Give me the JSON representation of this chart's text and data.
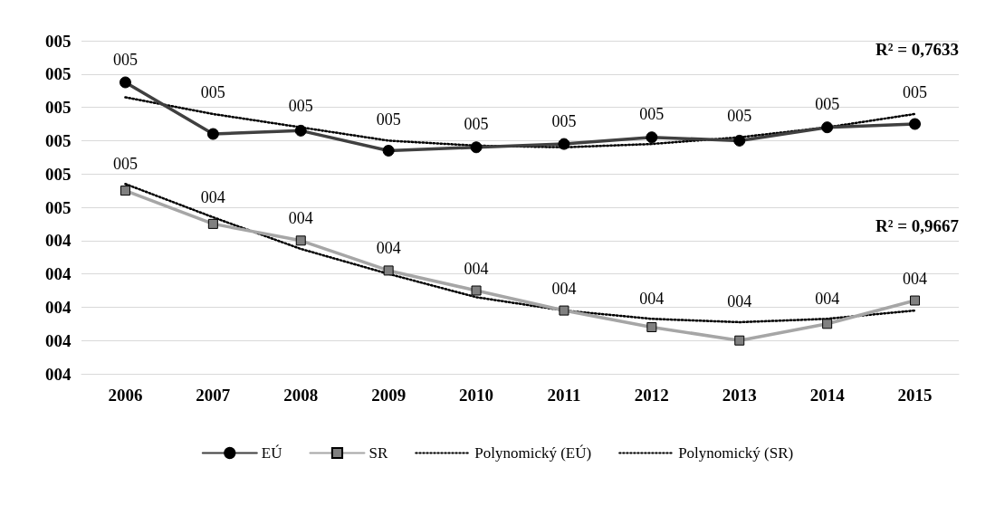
{
  "chart_data": {
    "type": "line",
    "categories": [
      "2006",
      "2007",
      "2008",
      "2009",
      "2010",
      "2011",
      "2012",
      "2013",
      "2014",
      "2015"
    ],
    "series": [
      {
        "name": "EÚ",
        "color": "#404040",
        "marker": "circle",
        "line_style": "solid",
        "values": [
          4.875,
          4.72,
          4.73,
          4.67,
          4.68,
          4.69,
          4.71,
          4.7,
          4.74,
          4.75
        ],
        "value_labels": [
          "005",
          "005",
          "005",
          "005",
          "005",
          "005",
          "005",
          "005",
          "005",
          "005"
        ]
      },
      {
        "name": "SR",
        "color": "#a6a6a6",
        "marker": "square",
        "line_style": "solid",
        "values": [
          4.55,
          4.45,
          4.4,
          4.31,
          4.25,
          4.19,
          4.14,
          4.1,
          4.15,
          4.22
        ],
        "value_labels": [
          "005",
          "004",
          "004",
          "004",
          "004",
          "004",
          "004",
          "004",
          "004",
          "004"
        ]
      },
      {
        "name": "Polynomický (EÚ)",
        "color": "#000000",
        "marker": "none",
        "line_style": "dotted",
        "values": [
          4.83,
          4.78,
          4.74,
          4.7,
          4.685,
          4.68,
          4.69,
          4.71,
          4.74,
          4.78
        ]
      },
      {
        "name": "Polynomický (SR)",
        "color": "#000000",
        "marker": "none",
        "line_style": "dotted",
        "values": [
          4.57,
          4.47,
          4.375,
          4.3,
          4.23,
          4.19,
          4.165,
          4.155,
          4.165,
          4.19
        ]
      }
    ],
    "ylim": [
      4.0,
      5.0
    ],
    "yticks": [
      {
        "value": 4.0,
        "label": "004"
      },
      {
        "value": 4.1,
        "label": "004"
      },
      {
        "value": 4.2,
        "label": "004"
      },
      {
        "value": 4.3,
        "label": "004"
      },
      {
        "value": 4.4,
        "label": "004"
      },
      {
        "value": 4.5,
        "label": "005"
      },
      {
        "value": 4.6,
        "label": "005"
      },
      {
        "value": 4.7,
        "label": "005"
      },
      {
        "value": 4.8,
        "label": "005"
      },
      {
        "value": 4.9,
        "label": "005"
      },
      {
        "value": 5.0,
        "label": "005"
      }
    ],
    "grid": "y",
    "legend": "bottom",
    "annotations": [
      "R² = 0,7633",
      "R² = 0,9667"
    ]
  }
}
